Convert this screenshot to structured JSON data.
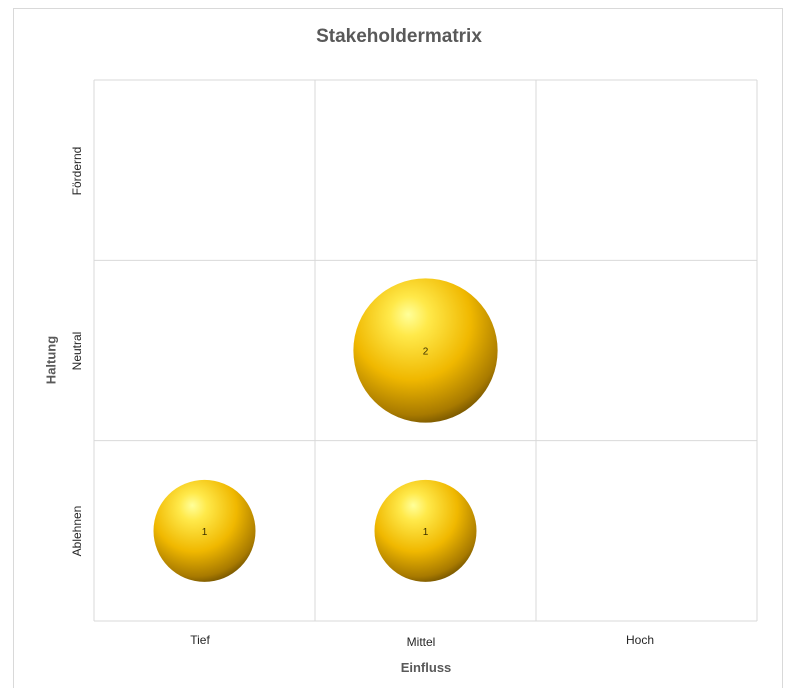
{
  "chart_data": {
    "type": "bubble",
    "title": "Stakeholdermatrix",
    "xlabel": "Einfluss",
    "ylabel": "Haltung",
    "x_categories": [
      "Tief",
      "Mittel",
      "Hoch"
    ],
    "y_categories": [
      "Ablehnen",
      "Neutral",
      "Fördernd"
    ],
    "grid": true,
    "points": [
      {
        "x": "Tief",
        "y": "Ablehnen",
        "value": 1
      },
      {
        "x": "Mittel",
        "y": "Ablehnen",
        "value": 1
      },
      {
        "x": "Mittel",
        "y": "Neutral",
        "value": 2
      }
    ],
    "bubble_color": "#f2c100",
    "gridline_color": "#d9d9d9"
  }
}
